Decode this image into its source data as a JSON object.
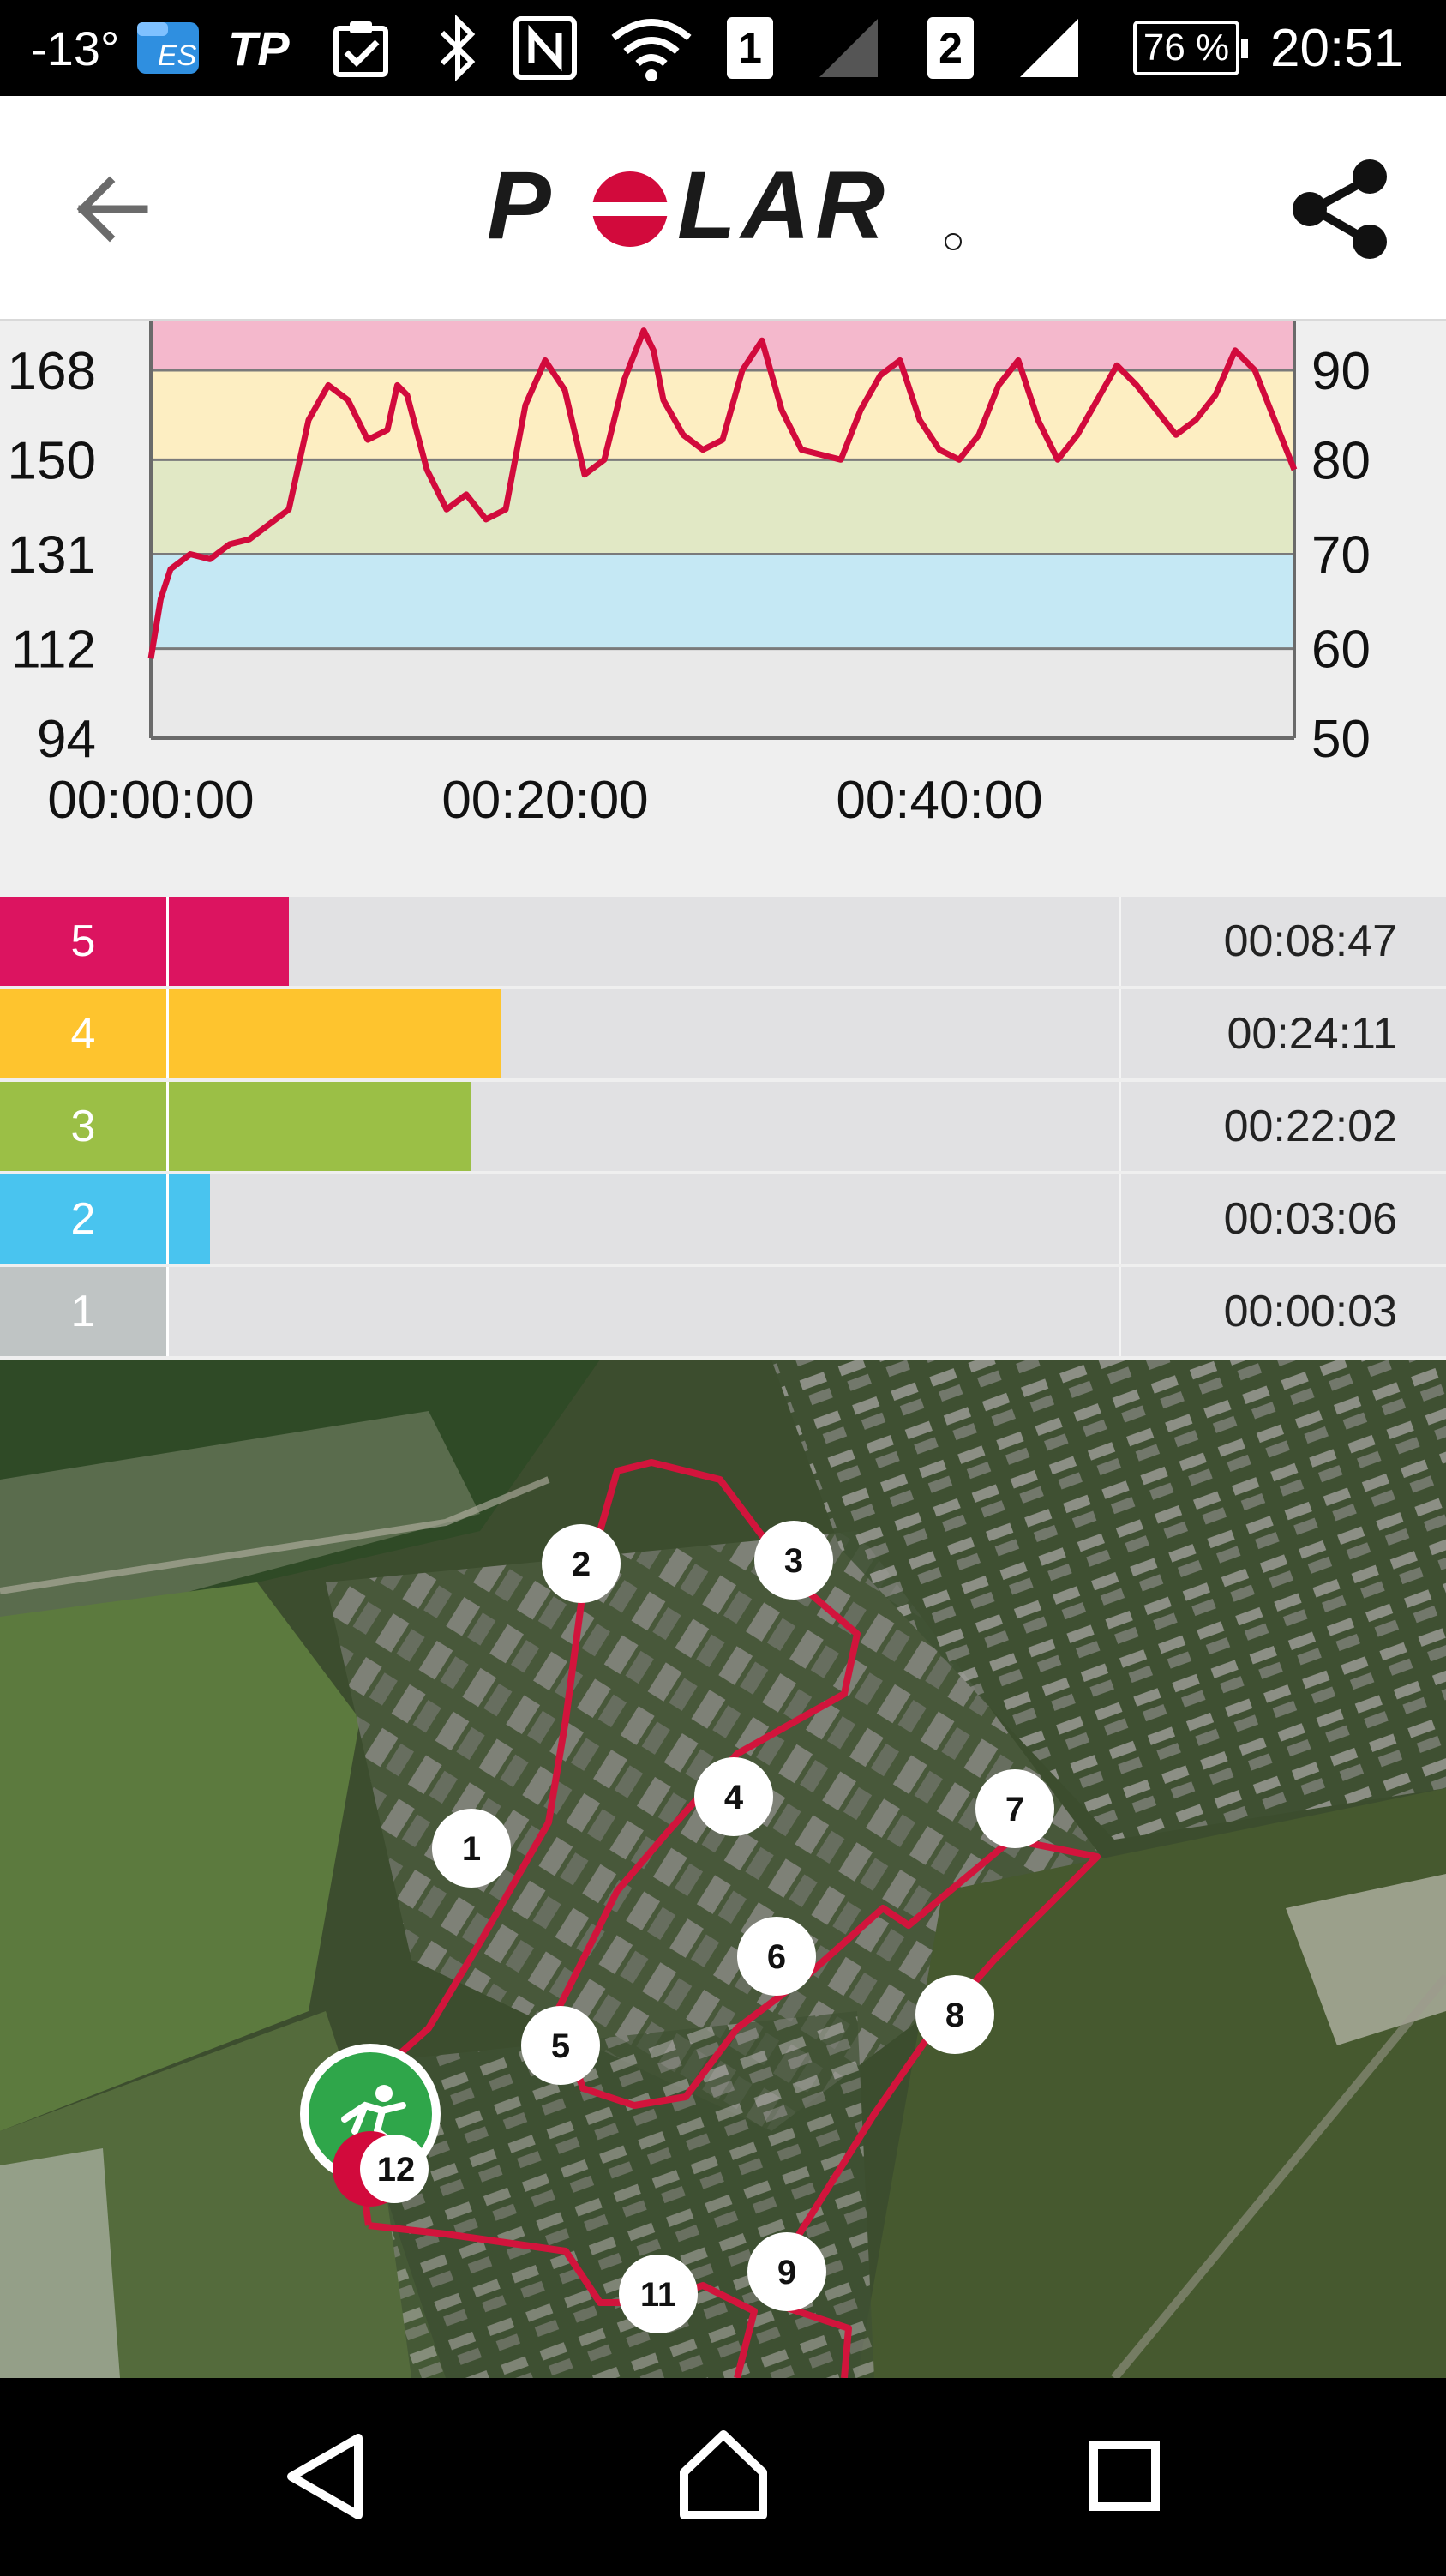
{
  "status_bar": {
    "temperature": "-13°",
    "tp_label": "TP",
    "sim1": "1",
    "sim2": "2",
    "battery": "76 %",
    "time": "20:51"
  },
  "app_bar": {
    "logo_text": "POLAR",
    "back_icon": "arrow-left-icon",
    "share_icon": "share-icon"
  },
  "chart_data": {
    "type": "line",
    "title": "",
    "x_ticks": [
      "00:00:00",
      "00:20:00",
      "00:40:00"
    ],
    "x_range_minutes": [
      0,
      58
    ],
    "y_left_ticks": [
      "168",
      "150",
      "131",
      "112",
      "94"
    ],
    "y_right_ticks": [
      "90",
      "80",
      "70",
      "60",
      "50"
    ],
    "y_range": [
      94,
      178
    ],
    "zone_bands": [
      {
        "zone": 5,
        "from": 168,
        "to": 178,
        "color": "#f4b8cc"
      },
      {
        "zone": 4,
        "from": 150,
        "to": 168,
        "color": "#fdeec2"
      },
      {
        "zone": 3,
        "from": 131,
        "to": 150,
        "color": "#e1e8c5"
      },
      {
        "zone": 2,
        "from": 112,
        "to": 131,
        "color": "#c5e8f4"
      },
      {
        "zone": 1,
        "from": 94,
        "to": 112,
        "color": "#e9e9e9"
      }
    ],
    "line_color": "#d20a3c",
    "series": [
      {
        "x": [
          0,
          0.5,
          1,
          2,
          3,
          4,
          5,
          6,
          7,
          8,
          9,
          10,
          11,
          12,
          12.5,
          13,
          14,
          15,
          16,
          17,
          18,
          19,
          20,
          21,
          22,
          23,
          24,
          25,
          25.5,
          26,
          27,
          28,
          29,
          30,
          31,
          32,
          33,
          34,
          35,
          36,
          37,
          38,
          39,
          40,
          41,
          42,
          43,
          44,
          45,
          46,
          47,
          48,
          49,
          50,
          51,
          52,
          53,
          54,
          55,
          56,
          57,
          58
        ],
        "y": [
          110,
          122,
          128,
          131,
          130,
          133,
          134,
          137,
          140,
          158,
          165,
          162,
          154,
          156,
          165,
          163,
          148,
          140,
          143,
          138,
          140,
          161,
          170,
          164,
          147,
          150,
          166,
          176,
          172,
          162,
          155,
          152,
          154,
          168,
          174,
          160,
          152,
          151,
          150,
          160,
          167,
          170,
          158,
          152,
          150,
          155,
          165,
          170,
          158,
          150,
          155,
          162,
          169,
          165,
          160,
          155,
          158,
          163,
          172,
          168,
          158,
          148
        ]
      }
    ]
  },
  "zones": [
    {
      "label": "5",
      "time": "00:08:47",
      "color": "#dc1460",
      "fraction": 0.127
    },
    {
      "label": "4",
      "time": "00:24:11",
      "color": "#fec42e",
      "fraction": 0.35
    },
    {
      "label": "3",
      "time": "00:22:02",
      "color": "#9bbf46",
      "fraction": 0.319
    },
    {
      "label": "2",
      "time": "00:03:06",
      "color": "#49c4ef",
      "fraction": 0.044
    },
    {
      "label": "1",
      "time": "00:00:03",
      "color": "#bfc4c4",
      "fraction": 0.0
    }
  ],
  "map": {
    "route_color": "#d2143c",
    "markers": [
      "1",
      "2",
      "3",
      "4",
      "5",
      "6",
      "7",
      "8",
      "9",
      "11",
      "12"
    ],
    "start_icon": "runner-icon"
  },
  "nav_bar": {
    "back_icon": "triangle-back-icon",
    "home_icon": "home-icon",
    "recents_icon": "square-recents-icon"
  }
}
